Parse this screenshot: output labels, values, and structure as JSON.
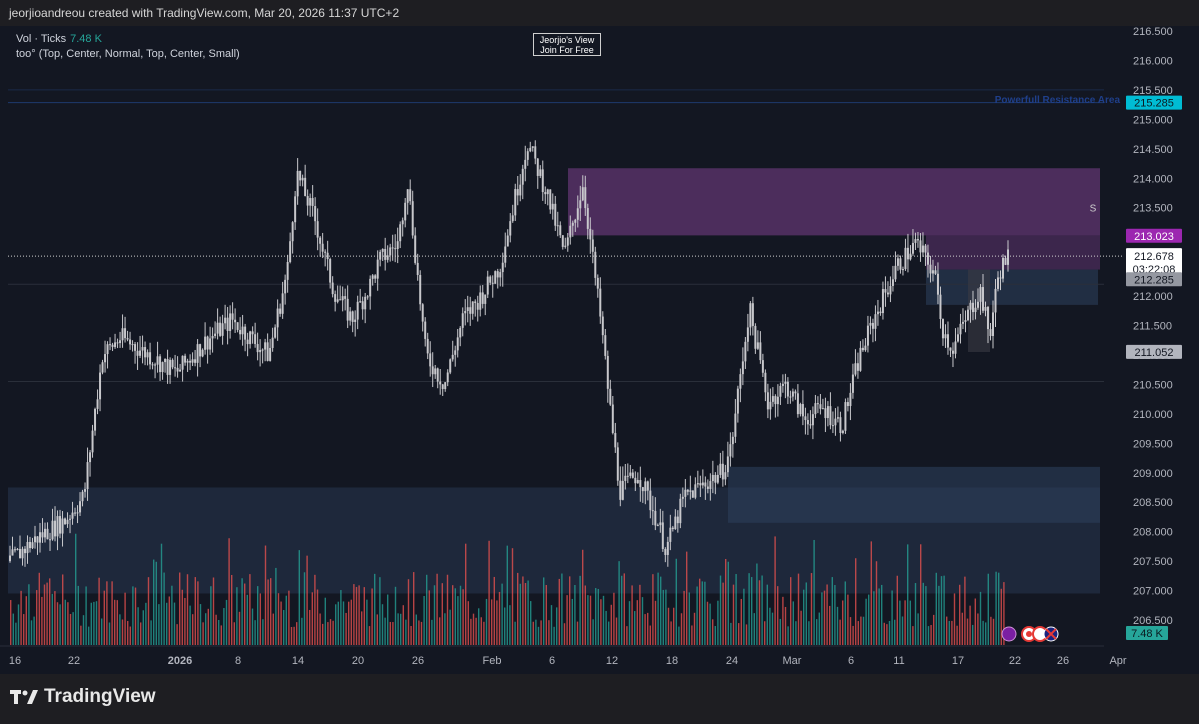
{
  "header": {
    "attribution": "jeorjioandreou created with TradingView.com, Mar 20, 2026 11:37 UTC+2"
  },
  "legend": {
    "vol_label": "Vol · Ticks",
    "vol_value": "7.48 K",
    "indicator": "too° (Top, Center, Normal, Top, Center, Small)"
  },
  "badge": {
    "line1": "Jeorjio's View",
    "line2": "Join For Free"
  },
  "footer": {
    "brand": "TradingView"
  },
  "colors": {
    "background": "#131722",
    "candle": "#c8c8cc",
    "vol_up": "#26a69a",
    "vol_down": "#ef5350",
    "purple_zone": "#7b3f8c",
    "blue_zone": "#2c3e5a",
    "resistance_label": "#1f3f8a"
  },
  "chart_data": {
    "type": "candlestick",
    "y_axis": {
      "ticks": [
        "216.500",
        "216.000",
        "215.500",
        "215.000",
        "214.500",
        "214.000",
        "213.500",
        "213.000",
        "212.500",
        "212.000",
        "211.500",
        "211.000",
        "210.500",
        "210.000",
        "209.500",
        "209.000",
        "208.500",
        "208.000",
        "207.500",
        "207.000",
        "206.500"
      ],
      "range": [
        206.3,
        216.7
      ]
    },
    "x_axis": {
      "ticks": [
        "16",
        "22",
        "2026",
        "8",
        "14",
        "20",
        "26",
        "Feb",
        "6",
        "12",
        "18",
        "24",
        "Mar",
        "6",
        "11",
        "17",
        "22",
        "26",
        "Apr"
      ]
    },
    "price_labels": {
      "resistance": "215.285",
      "purple_level": "213.023",
      "current_price": "212.678",
      "countdown": "03:22:08",
      "level_2": "212.285",
      "level_3": "211.052",
      "volume": "7.48 K"
    },
    "annotations": {
      "resistance_text": "Powerfull Resistance Area",
      "zone_letter": "S"
    },
    "close_path": [
      {
        "x": 0,
        "y": 207.5
      },
      {
        "x": 3,
        "y": 207.9
      },
      {
        "x": 6,
        "y": 208.2
      },
      {
        "x": 8,
        "y": 208.6
      },
      {
        "x": 10,
        "y": 211.0
      },
      {
        "x": 12,
        "y": 211.3
      },
      {
        "x": 15,
        "y": 211.0
      },
      {
        "x": 18,
        "y": 210.7
      },
      {
        "x": 21,
        "y": 211.2
      },
      {
        "x": 24,
        "y": 211.6
      },
      {
        "x": 26,
        "y": 211.3
      },
      {
        "x": 28,
        "y": 211.0
      },
      {
        "x": 30,
        "y": 212.4
      },
      {
        "x": 31,
        "y": 214.1
      },
      {
        "x": 33,
        "y": 213.3
      },
      {
        "x": 35,
        "y": 212.1
      },
      {
        "x": 37,
        "y": 211.6
      },
      {
        "x": 39,
        "y": 212.2
      },
      {
        "x": 40,
        "y": 212.6
      },
      {
        "x": 42,
        "y": 212.9
      },
      {
        "x": 43,
        "y": 214.0
      },
      {
        "x": 45,
        "y": 211.0
      },
      {
        "x": 47,
        "y": 210.5
      },
      {
        "x": 49,
        "y": 211.6
      },
      {
        "x": 51,
        "y": 212.0
      },
      {
        "x": 53,
        "y": 212.5
      },
      {
        "x": 56,
        "y": 214.6
      },
      {
        "x": 58,
        "y": 213.8
      },
      {
        "x": 60,
        "y": 212.7
      },
      {
        "x": 62,
        "y": 213.9
      },
      {
        "x": 64,
        "y": 211.5
      },
      {
        "x": 65,
        "y": 210.0
      },
      {
        "x": 66,
        "y": 208.7
      },
      {
        "x": 68,
        "y": 209.0
      },
      {
        "x": 70,
        "y": 208.2
      },
      {
        "x": 71,
        "y": 207.7
      },
      {
        "x": 73,
        "y": 208.6
      },
      {
        "x": 75,
        "y": 208.8
      },
      {
        "x": 77,
        "y": 209.0
      },
      {
        "x": 78,
        "y": 209.4
      },
      {
        "x": 80,
        "y": 211.8
      },
      {
        "x": 82,
        "y": 210.2
      },
      {
        "x": 84,
        "y": 210.5
      },
      {
        "x": 86,
        "y": 209.9
      },
      {
        "x": 88,
        "y": 210.1
      },
      {
        "x": 90,
        "y": 209.8
      },
      {
        "x": 92,
        "y": 211.0
      },
      {
        "x": 94,
        "y": 211.8
      },
      {
        "x": 96,
        "y": 212.5
      },
      {
        "x": 98,
        "y": 212.9
      },
      {
        "x": 100,
        "y": 212.4
      },
      {
        "x": 101,
        "y": 211.4
      },
      {
        "x": 102,
        "y": 211.1
      },
      {
        "x": 104,
        "y": 211.8
      },
      {
        "x": 105,
        "y": 212.1
      },
      {
        "x": 106,
        "y": 211.3
      },
      {
        "x": 107,
        "y": 212.4
      },
      {
        "x": 108,
        "y": 212.68
      }
    ],
    "volume_note": "volume histogram shown on lower pane"
  }
}
